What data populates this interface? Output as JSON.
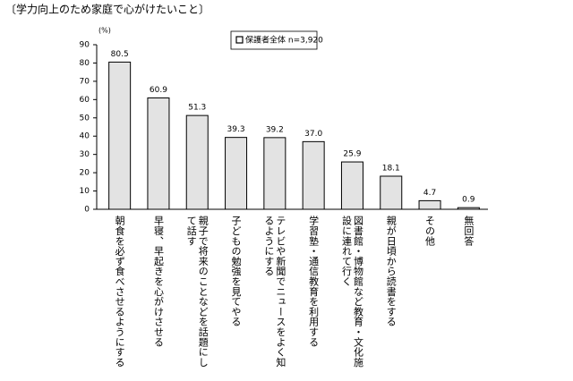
{
  "chart_data": {
    "type": "bar",
    "title": "〔学力向上のため家庭で心がけたいこと〕",
    "unit": "(%)",
    "categories": [
      "朝食を必ず食べさせるようにする",
      "早寝、早起きを心がけさせる",
      "親子で将来のことなどを話題にして話す",
      "子どもの勉強を見てやる",
      "テレビや新聞でニュースをよく知るようにする",
      "学習塾・通信教育を利用する",
      "図書館・博物館など教育・文化施設に連れて行く",
      "親が日頃から読書をする",
      "その他",
      "無回答"
    ],
    "series": [
      {
        "name": "保護者全体 n=3,920",
        "color": "#e3e3e3",
        "values": [
          80.5,
          60.9,
          51.3,
          39.3,
          39.2,
          37.0,
          25.9,
          18.1,
          4.7,
          0.9
        ],
        "value_labels": [
          "80.5",
          "60.9",
          "51.3",
          "39.3",
          "39.2",
          "37.0",
          "25.9",
          "18.1",
          "4.7",
          "0.9"
        ]
      }
    ],
    "ylim": [
      0,
      90
    ],
    "yticks": [
      0,
      10,
      20,
      30,
      40,
      50,
      60,
      70,
      80,
      90
    ],
    "grid": false
  }
}
